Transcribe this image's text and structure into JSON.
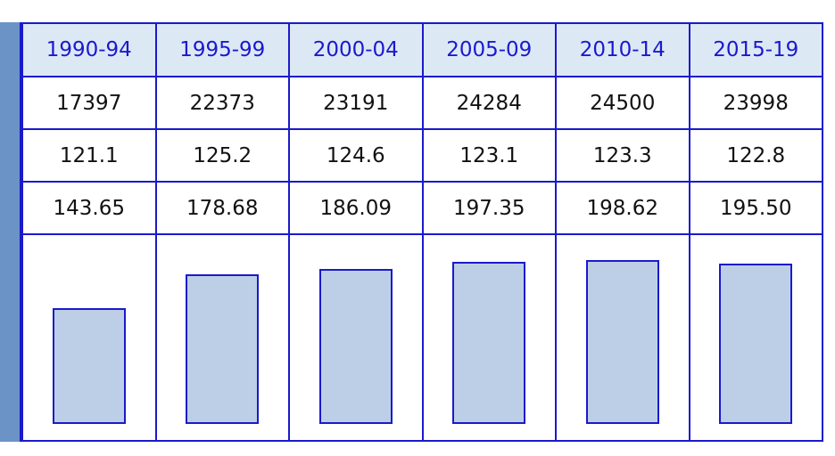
{
  "chart_data": {
    "type": "table",
    "columns": [
      "1990-94",
      "1995-99",
      "2000-04",
      "2005-09",
      "2010-14",
      "2015-19"
    ],
    "rows": [
      [
        "17397",
        "22373",
        "23191",
        "24284",
        "24500",
        "23998"
      ],
      [
        "121.1",
        "125.2",
        "124.6",
        "123.1",
        "123.3",
        "122.8"
      ],
      [
        "143.65",
        "178.68",
        "186.09",
        "197.35",
        "198.62",
        "195.50"
      ]
    ],
    "bar_values": [
      17397,
      22373,
      23191,
      24284,
      24500,
      23998
    ],
    "bar_ylim": [
      0,
      30000
    ],
    "colors": {
      "border": "#1a1acc",
      "header_bg": "#dde8f5",
      "header_text": "#1a1acc",
      "stub": "#6b93c6",
      "bar_fill": "#bdcfe6"
    }
  }
}
